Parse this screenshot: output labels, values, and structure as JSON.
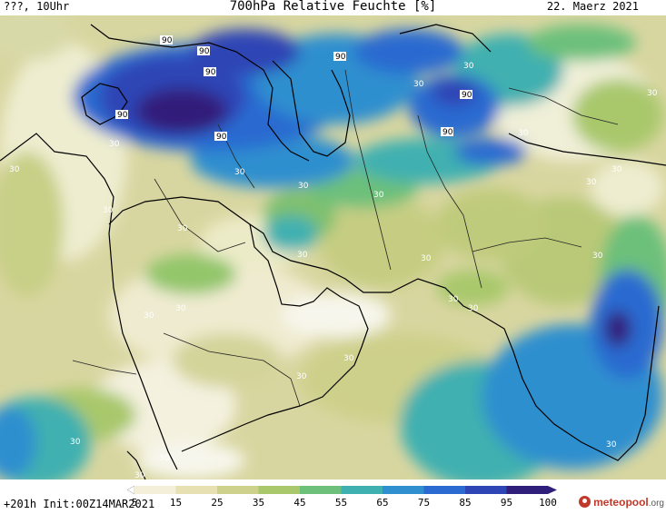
{
  "header": {
    "left": "???, 10Uhr",
    "title": "700hPa Relative Feuchte [%]",
    "date": "22. Maerz 2021"
  },
  "legend": {
    "ticks": [
      "5",
      "15",
      "25",
      "35",
      "45",
      "55",
      "65",
      "75",
      "85",
      "95",
      "100"
    ],
    "colors": [
      "#ffffff",
      "#f3efd8",
      "#e6e0b2",
      "#cdd18c",
      "#a9c86c",
      "#6cc07a",
      "#3fb0b0",
      "#2f8fcf",
      "#2b6ad0",
      "#2d45b5",
      "#301f7a"
    ]
  },
  "footer": {
    "init": "+201h Init:00Z14MAR2021",
    "brand": "meteopool",
    "brand_suffix": ".org"
  },
  "contour_labels_90": [
    "90",
    "90",
    "90",
    "90",
    "90",
    "90",
    "90",
    "90"
  ],
  "contour_labels_30": [
    "30",
    "30",
    "30",
    "30",
    "30",
    "30",
    "30",
    "30",
    "30",
    "30",
    "30",
    "30",
    "30",
    "30",
    "30",
    "30",
    "30",
    "30",
    "30",
    "30",
    "30",
    "30",
    "30",
    "30",
    "30",
    "30"
  ]
}
